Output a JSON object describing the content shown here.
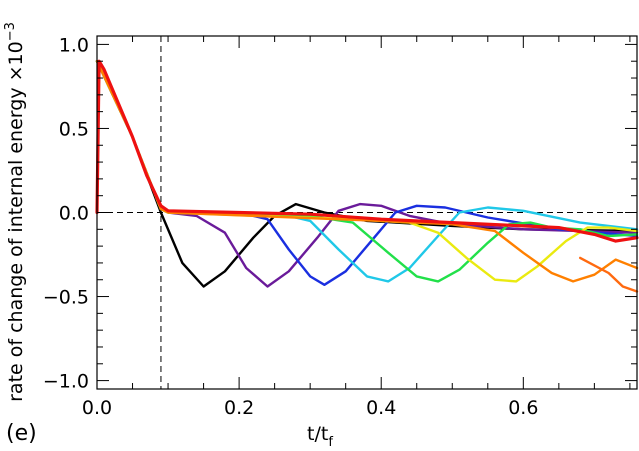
{
  "chart_data": {
    "type": "line",
    "panel_label": "(e)",
    "xlabel": "t/t",
    "xlabel_sub": "f",
    "ylabel": "rate of change of internal energy ×10",
    "ylabel_exp": "−3",
    "xlim": [
      0.0,
      0.76
    ],
    "ylim": [
      -1.05,
      1.05
    ],
    "xticks": [
      0.0,
      0.2,
      0.4,
      0.6
    ],
    "xtick_labels": [
      "0.0",
      "0.2",
      "0.4",
      "0.6"
    ],
    "yticks": [
      -1.0,
      -0.5,
      0.0,
      0.5,
      1.0
    ],
    "ytick_labels": [
      "−1.0",
      "−0.5",
      "0.0",
      "0.5",
      "1.0"
    ],
    "reference_lines": {
      "horizontal_y": 0.0,
      "vertical_x": 0.09
    },
    "series": [
      {
        "color": "#000000",
        "points": [
          [
            0,
            0.9
          ],
          [
            0.05,
            0.45
          ],
          [
            0.09,
            0.0
          ],
          [
            0.12,
            -0.3
          ],
          [
            0.15,
            -0.44
          ],
          [
            0.18,
            -0.35
          ],
          [
            0.22,
            -0.15
          ],
          [
            0.25,
            -0.02
          ],
          [
            0.28,
            0.05
          ],
          [
            0.32,
            0.0
          ],
          [
            0.38,
            -0.05
          ],
          [
            0.5,
            -0.08
          ],
          [
            0.6,
            -0.1
          ],
          [
            0.76,
            -0.11
          ]
        ]
      },
      {
        "color": "#6a1b9a",
        "points": [
          [
            0,
            0.9
          ],
          [
            0.05,
            0.45
          ],
          [
            0.09,
            0.02
          ],
          [
            0.1,
            0.0
          ],
          [
            0.14,
            -0.02
          ],
          [
            0.18,
            -0.12
          ],
          [
            0.21,
            -0.33
          ],
          [
            0.24,
            -0.44
          ],
          [
            0.27,
            -0.35
          ],
          [
            0.31,
            -0.15
          ],
          [
            0.34,
            0.01
          ],
          [
            0.37,
            0.05
          ],
          [
            0.4,
            0.04
          ],
          [
            0.44,
            -0.02
          ],
          [
            0.5,
            -0.07
          ],
          [
            0.6,
            -0.1
          ],
          [
            0.76,
            -0.12
          ]
        ]
      },
      {
        "color": "#1a2fe0",
        "points": [
          [
            0,
            0.9
          ],
          [
            0.05,
            0.45
          ],
          [
            0.09,
            0.02
          ],
          [
            0.1,
            0.0
          ],
          [
            0.2,
            0.0
          ],
          [
            0.24,
            -0.04
          ],
          [
            0.27,
            -0.22
          ],
          [
            0.3,
            -0.38
          ],
          [
            0.32,
            -0.43
          ],
          [
            0.35,
            -0.35
          ],
          [
            0.39,
            -0.15
          ],
          [
            0.42,
            0.0
          ],
          [
            0.45,
            0.04
          ],
          [
            0.49,
            0.03
          ],
          [
            0.55,
            -0.03
          ],
          [
            0.65,
            -0.1
          ],
          [
            0.76,
            -0.14
          ]
        ]
      },
      {
        "color": "#20c8e8",
        "points": [
          [
            0,
            0.9
          ],
          [
            0.05,
            0.45
          ],
          [
            0.09,
            0.02
          ],
          [
            0.1,
            0.0
          ],
          [
            0.26,
            -0.01
          ],
          [
            0.3,
            -0.05
          ],
          [
            0.34,
            -0.22
          ],
          [
            0.38,
            -0.38
          ],
          [
            0.41,
            -0.41
          ],
          [
            0.44,
            -0.33
          ],
          [
            0.48,
            -0.14
          ],
          [
            0.51,
            0.0
          ],
          [
            0.55,
            0.03
          ],
          [
            0.6,
            0.01
          ],
          [
            0.68,
            -0.06
          ],
          [
            0.76,
            -0.1
          ]
        ]
      },
      {
        "color": "#22e04a",
        "points": [
          [
            0,
            0.9
          ],
          [
            0.05,
            0.45
          ],
          [
            0.09,
            0.02
          ],
          [
            0.1,
            0.0
          ],
          [
            0.3,
            -0.02
          ],
          [
            0.36,
            -0.06
          ],
          [
            0.41,
            -0.24
          ],
          [
            0.45,
            -0.38
          ],
          [
            0.48,
            -0.41
          ],
          [
            0.51,
            -0.34
          ],
          [
            0.55,
            -0.18
          ],
          [
            0.58,
            -0.07
          ],
          [
            0.61,
            -0.06
          ],
          [
            0.64,
            -0.09
          ],
          [
            0.68,
            -0.1
          ],
          [
            0.72,
            -0.14
          ],
          [
            0.76,
            -0.13
          ]
        ]
      },
      {
        "color": "#eaea10",
        "points": [
          [
            0,
            0.9
          ],
          [
            0.05,
            0.45
          ],
          [
            0.09,
            0.02
          ],
          [
            0.1,
            0.0
          ],
          [
            0.36,
            -0.04
          ],
          [
            0.44,
            -0.06
          ],
          [
            0.48,
            -0.12
          ],
          [
            0.52,
            -0.27
          ],
          [
            0.56,
            -0.4
          ],
          [
            0.59,
            -0.41
          ],
          [
            0.62,
            -0.32
          ],
          [
            0.66,
            -0.17
          ],
          [
            0.69,
            -0.09
          ],
          [
            0.72,
            -0.09
          ],
          [
            0.76,
            -0.11
          ]
        ]
      },
      {
        "color": "#ff8000",
        "points": [
          [
            0,
            0.9
          ],
          [
            0.05,
            0.45
          ],
          [
            0.09,
            0.02
          ],
          [
            0.1,
            0.0
          ],
          [
            0.4,
            -0.05
          ],
          [
            0.5,
            -0.07
          ],
          [
            0.56,
            -0.11
          ],
          [
            0.6,
            -0.24
          ],
          [
            0.64,
            -0.36
          ],
          [
            0.67,
            -0.41
          ],
          [
            0.7,
            -0.37
          ],
          [
            0.73,
            -0.28
          ],
          [
            0.76,
            -0.33
          ]
        ]
      },
      {
        "color": "#ff6a10",
        "points": [
          [
            0.68,
            -0.27
          ],
          [
            0.72,
            -0.36
          ],
          [
            0.74,
            -0.44
          ],
          [
            0.76,
            -0.47
          ]
        ]
      },
      {
        "color": "#ee1111",
        "points": [
          [
            0,
            0.0
          ],
          [
            0.003,
            0.9
          ],
          [
            0.01,
            0.85
          ],
          [
            0.03,
            0.65
          ],
          [
            0.05,
            0.45
          ],
          [
            0.07,
            0.22
          ],
          [
            0.09,
            0.04
          ],
          [
            0.1,
            0.01
          ],
          [
            0.2,
            0.0
          ],
          [
            0.3,
            -0.01
          ],
          [
            0.4,
            -0.04
          ],
          [
            0.5,
            -0.06
          ],
          [
            0.6,
            -0.08
          ],
          [
            0.65,
            -0.09
          ],
          [
            0.7,
            -0.13
          ],
          [
            0.73,
            -0.17
          ],
          [
            0.76,
            -0.15
          ]
        ]
      }
    ]
  }
}
